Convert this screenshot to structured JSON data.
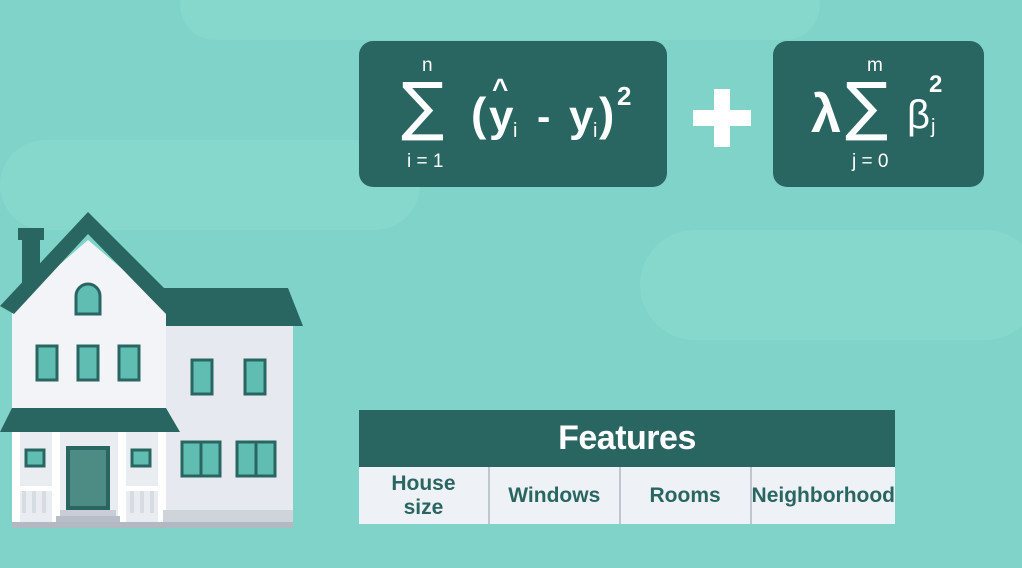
{
  "formula": {
    "sum1": {
      "symbol": "∑",
      "upper": "n",
      "lower": "i = 1",
      "open_paren": "(",
      "y_hat": "y",
      "hat": "^",
      "sub_i_1": "i",
      "minus": "-",
      "y": "y",
      "sub_i_2": "i",
      "close_paren": ")",
      "power": "2"
    },
    "plus": "+",
    "sum2": {
      "lambda": "λ",
      "symbol": "∑",
      "upper": "m",
      "lower": "j = 0",
      "beta": "β",
      "sub_j": "j",
      "power": "2"
    }
  },
  "features": {
    "title": "Features",
    "columns": [
      "House\nsize",
      "Windows",
      "Rooms",
      "Neighborhood"
    ]
  },
  "colors": {
    "background": "#7fd3c8",
    "dark_teal": "#2a6661",
    "light_panel": "#eef2f7",
    "white": "#ffffff"
  }
}
